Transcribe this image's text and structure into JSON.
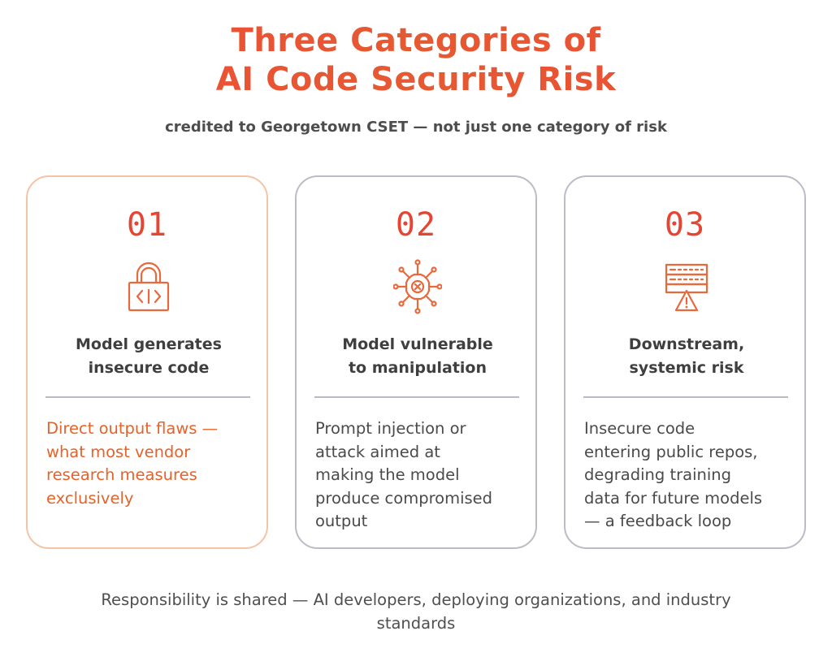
{
  "header": {
    "title_line1": "Three Categories of",
    "title_line2": "AI Code Security Risk",
    "subtitle": "credited to Georgetown CSET — not just one category of risk"
  },
  "cards": [
    {
      "number": "01",
      "icon": "code-lock-icon",
      "heading_line1": "Model generates",
      "heading_line2": "insecure code",
      "body_lines": [
        "Direct output flaws —",
        "what most vendor",
        "research measures",
        "exclusively"
      ]
    },
    {
      "number": "02",
      "icon": "network-error-icon",
      "heading_line1": "Model vulnerable",
      "heading_line2": "to manipulation",
      "body_lines": [
        "Prompt injection or",
        "attack aimed at",
        "making the model",
        "produce compromised",
        "output"
      ]
    },
    {
      "number": "03",
      "icon": "server-warning-icon",
      "heading_line1": "Downstream,",
      "heading_line2": "systemic risk",
      "body_lines": [
        "Insecure code",
        "entering public repos,",
        "degrading training",
        "data for future models",
        "— a feedback loop"
      ]
    }
  ],
  "footer": {
    "line1": "Responsibility is shared — AI developers, deploying organizations, and industry",
    "line2": "standards"
  },
  "colors": {
    "accent": "#e54634",
    "highlight_text": "#e5622a",
    "highlight_border": "#f4c4a6",
    "card_border": "#babcc6"
  }
}
